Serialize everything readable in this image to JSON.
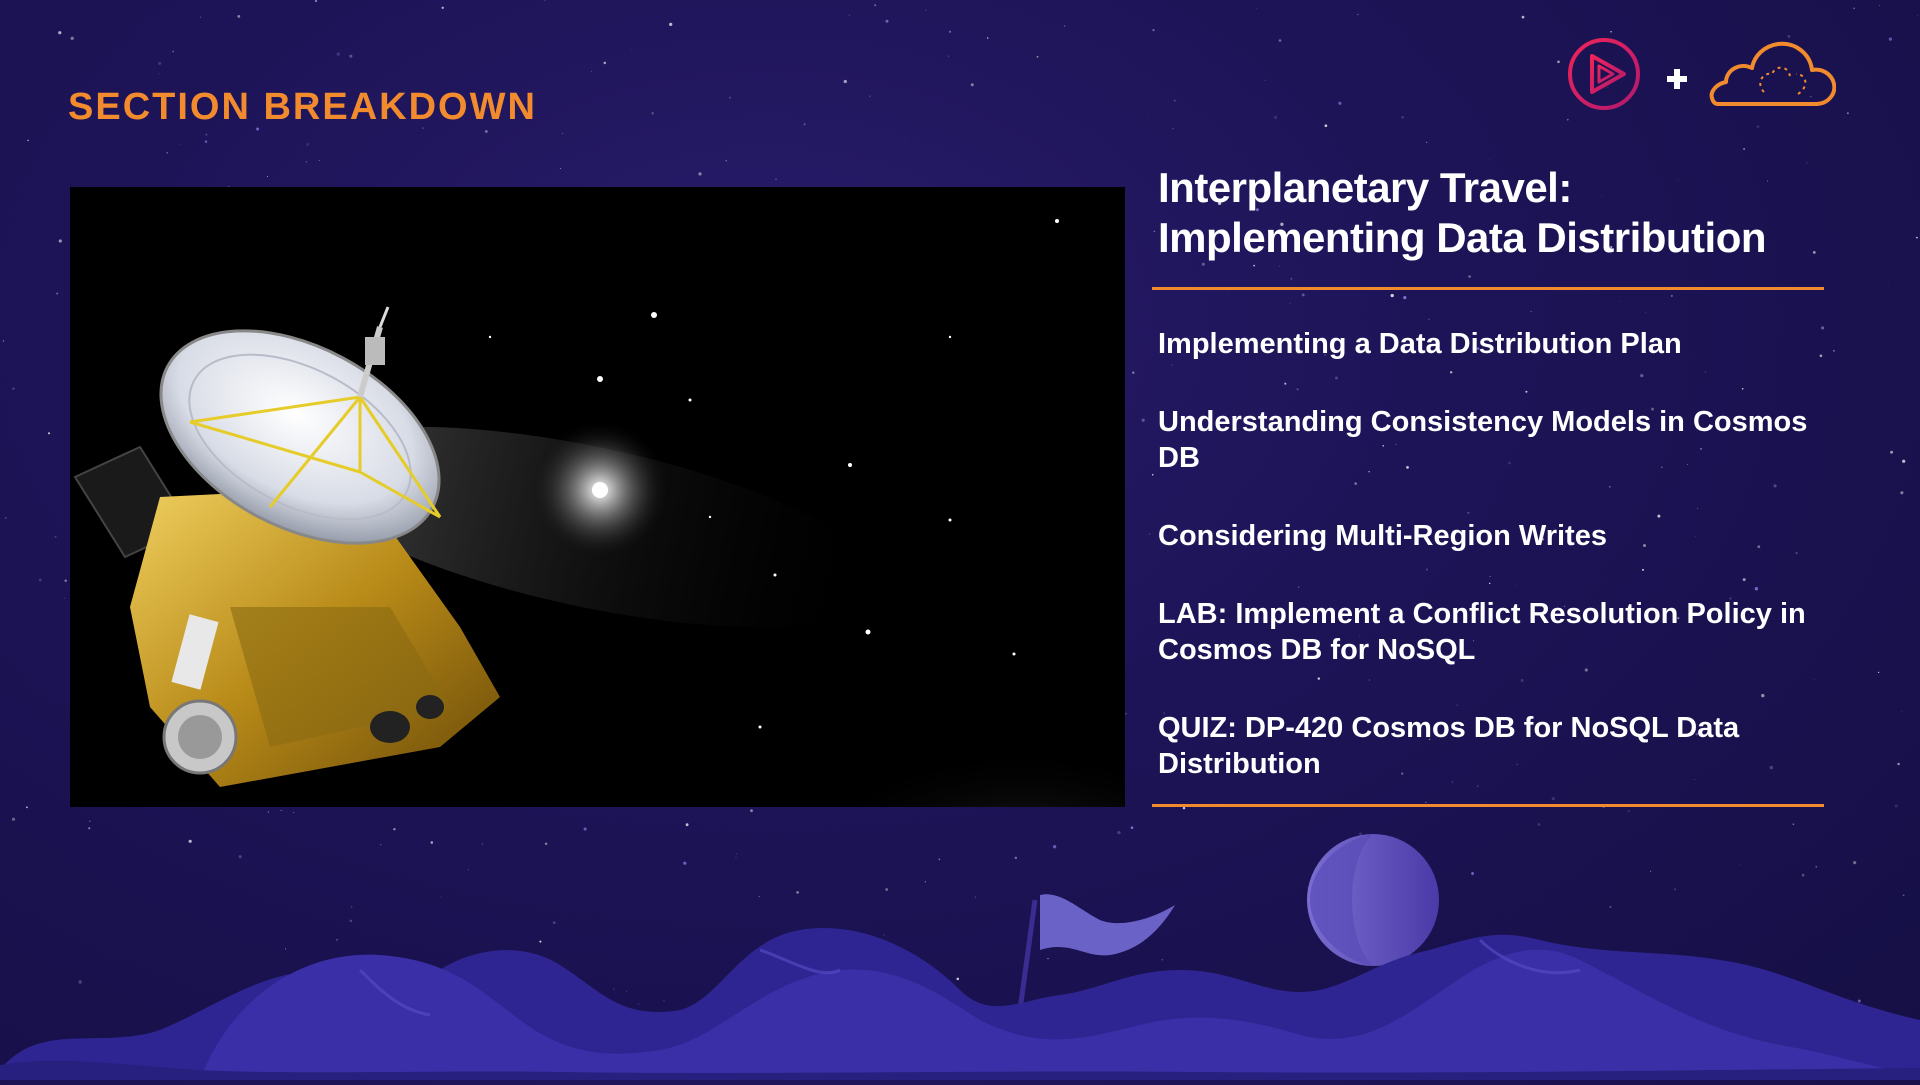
{
  "section": {
    "title": "SECTION BREAKDOWN"
  },
  "logos": {
    "left_icon": "play-circle-icon",
    "plus_icon": "plus-icon",
    "right_icon": "cloud-brain-icon",
    "accent_red": "#e0245e",
    "accent_orange": "#f28a2e"
  },
  "photo": {
    "subject_icon": "spacecraft-illustration"
  },
  "panel": {
    "title": "Interplanetary Travel: Implementing Data Distribution",
    "lessons": [
      "Implementing a Data Distribution Plan",
      "Understanding Consistency Models in Cosmos DB",
      "Considering Multi-Region Writes",
      "LAB: Implement a Conflict Resolution Policy in Cosmos DB for NoSQL",
      "QUIZ: DP-420 Cosmos DB for NoSQL Data Distribution"
    ]
  },
  "colors": {
    "background": "#1d1458",
    "accent": "#f28a2e",
    "text": "#ffffff"
  }
}
